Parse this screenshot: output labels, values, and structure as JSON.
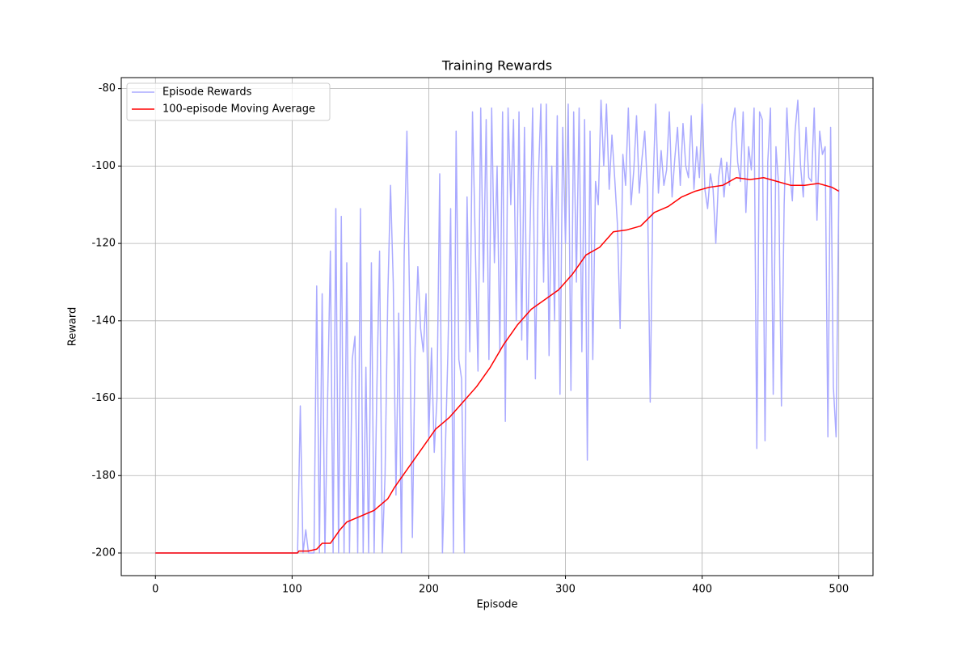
{
  "chart_data": {
    "type": "line",
    "title": "Training Rewards",
    "x_label": "Episode",
    "y_label": "Reward",
    "xlim": [
      -25,
      525
    ],
    "ylim": [
      -205.85,
      -77.15
    ],
    "xticks": [
      0,
      100,
      200,
      300,
      400,
      500
    ],
    "yticks": [
      -200,
      -180,
      -160,
      -140,
      -120,
      -100,
      -80
    ],
    "grid": true,
    "legend": "upper left",
    "series": [
      {
        "name": "Episode Rewards",
        "color": "#aaaaff",
        "x": [
          0,
          104,
          106,
          108,
          110,
          112,
          114,
          116,
          118,
          120,
          122,
          124,
          126,
          128,
          130,
          132,
          134,
          136,
          138,
          140,
          142,
          144,
          146,
          148,
          150,
          152,
          154,
          156,
          158,
          160,
          162,
          164,
          166,
          168,
          170,
          172,
          174,
          176,
          178,
          180,
          182,
          184,
          186,
          188,
          190,
          192,
          194,
          196,
          198,
          200,
          202,
          204,
          206,
          208,
          210,
          212,
          214,
          216,
          218,
          220,
          222,
          224,
          226,
          228,
          230,
          232,
          234,
          236,
          238,
          240,
          242,
          244,
          246,
          248,
          250,
          252,
          254,
          256,
          258,
          260,
          262,
          264,
          266,
          268,
          270,
          272,
          274,
          276,
          278,
          280,
          282,
          284,
          286,
          288,
          290,
          292,
          294,
          296,
          298,
          300,
          302,
          304,
          306,
          308,
          310,
          312,
          314,
          316,
          318,
          320,
          322,
          324,
          326,
          328,
          330,
          332,
          334,
          336,
          338,
          340,
          342,
          344,
          346,
          348,
          350,
          352,
          354,
          356,
          358,
          360,
          362,
          364,
          366,
          368,
          370,
          372,
          374,
          376,
          378,
          380,
          382,
          384,
          386,
          388,
          390,
          392,
          394,
          396,
          398,
          400,
          402,
          404,
          406,
          408,
          410,
          412,
          414,
          416,
          418,
          420,
          422,
          424,
          426,
          428,
          430,
          432,
          434,
          436,
          438,
          440,
          442,
          444,
          446,
          448,
          450,
          452,
          454,
          456,
          458,
          460,
          462,
          464,
          466,
          468,
          470,
          472,
          474,
          476,
          478,
          480,
          482,
          484,
          486,
          488,
          490,
          492,
          494,
          496,
          498,
          500
        ],
        "values": [
          -200,
          -200,
          -162,
          -200,
          -194,
          -200,
          -200,
          -200,
          -131,
          -200,
          -133,
          -200,
          -160,
          -122,
          -200,
          -111,
          -200,
          -113,
          -200,
          -125,
          -200,
          -150,
          -144,
          -200,
          -111,
          -200,
          -152,
          -200,
          -125,
          -200,
          -158,
          -122,
          -200,
          -180,
          -134,
          -105,
          -130,
          -185,
          -138,
          -200,
          -123,
          -91,
          -136,
          -196,
          -147,
          -126,
          -142,
          -148,
          -133,
          -170,
          -147,
          -174,
          -160,
          -102,
          -200,
          -175,
          -148,
          -111,
          -200,
          -91,
          -150,
          -155,
          -200,
          -108,
          -148,
          -86,
          -120,
          -153,
          -85,
          -130,
          -88,
          -150,
          -85,
          -125,
          -100,
          -148,
          -86,
          -166,
          -85,
          -110,
          -88,
          -140,
          -86,
          -145,
          -90,
          -150,
          -118,
          -85,
          -155,
          -105,
          -84,
          -130,
          -84,
          -149,
          -100,
          -140,
          -87,
          -159,
          -90,
          -120,
          -84,
          -158,
          -86,
          -130,
          -85,
          -148,
          -88,
          -176,
          -91,
          -150,
          -104,
          -110,
          -83,
          -100,
          -84,
          -106,
          -92,
          -103,
          -115,
          -142,
          -97,
          -105,
          -85,
          -110,
          -101,
          -87,
          -107,
          -98,
          -91,
          -106,
          -161,
          -106,
          -84,
          -107,
          -96,
          -105,
          -101,
          -86,
          -108,
          -98,
          -90,
          -105,
          -89,
          -100,
          -103,
          -87,
          -106,
          -95,
          -103,
          -84,
          -106,
          -111,
          -102,
          -106,
          -120,
          -103,
          -98,
          -108,
          -99,
          -105,
          -89,
          -85,
          -99,
          -104,
          -86,
          -112,
          -95,
          -101,
          -85,
          -173,
          -86,
          -88,
          -171,
          -99,
          -85,
          -159,
          -95,
          -105,
          -162,
          -110,
          -85,
          -101,
          -109,
          -91,
          -83,
          -100,
          -108,
          -90,
          -103,
          -104,
          -85,
          -114,
          -91,
          -97,
          -95,
          -170,
          -90,
          -157,
          -170,
          -106
        ]
      },
      {
        "name": "100-episode Moving Average",
        "color": "#ff0000",
        "x": [
          0,
          104,
          105,
          112,
          118,
          122,
          128,
          135,
          140,
          150,
          160,
          170,
          175,
          185,
          195,
          205,
          215,
          225,
          235,
          245,
          255,
          265,
          275,
          285,
          295,
          305,
          315,
          325,
          335,
          345,
          355,
          365,
          375,
          385,
          395,
          405,
          415,
          425,
          435,
          445,
          455,
          465,
          475,
          485,
          495,
          500
        ],
        "values": [
          -200,
          -200,
          -199.5,
          -199.5,
          -199,
          -197.5,
          -197.5,
          -194,
          -192,
          -190.5,
          -189,
          -186,
          -183,
          -178,
          -173,
          -168,
          -165,
          -161,
          -157,
          -152,
          -146,
          -141,
          -137,
          -134.5,
          -132,
          -128,
          -123,
          -121,
          -117,
          -116.5,
          -115.5,
          -112,
          -110.5,
          -108,
          -106.5,
          -105.5,
          -105,
          -103,
          -103.5,
          -103,
          -104,
          -105,
          -105,
          -104.5,
          -105.5,
          -106.5
        ]
      }
    ]
  }
}
